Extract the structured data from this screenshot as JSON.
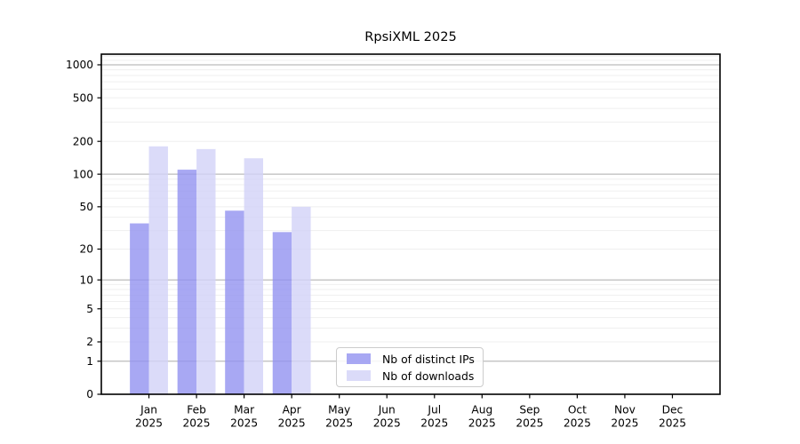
{
  "title": "RpsiXML 2025",
  "chart_data": {
    "type": "bar",
    "title": "RpsiXML 2025",
    "months": [
      "Jan",
      "Feb",
      "Mar",
      "Apr",
      "May",
      "Jun",
      "Jul",
      "Aug",
      "Sep",
      "Oct",
      "Nov",
      "Dec"
    ],
    "year_label": "2025",
    "series": [
      {
        "name": "Nb of distinct IPs",
        "color": "#9292f0",
        "values": [
          35,
          110,
          46,
          29,
          0,
          0,
          0,
          0,
          0,
          0,
          0,
          0
        ]
      },
      {
        "name": "Nb of downloads",
        "color": "#d2d2f7",
        "values": [
          180,
          170,
          140,
          50,
          0,
          0,
          0,
          0,
          0,
          0,
          0,
          0
        ]
      }
    ],
    "y_scale": "log1p",
    "y_ticks": [
      0,
      1,
      2,
      5,
      10,
      20,
      50,
      100,
      200,
      500,
      1000
    ],
    "ylim": [
      0,
      1250
    ],
    "grid": true,
    "legend_position": "lower-center",
    "colors": {
      "grid_major": "#bcbcbc",
      "grid_minor": "#efefef",
      "axis": "#000000",
      "bar_opacity": 0.8
    }
  },
  "legend": {
    "items": [
      {
        "label": "Nb of distinct IPs"
      },
      {
        "label": "Nb of downloads"
      }
    ]
  }
}
